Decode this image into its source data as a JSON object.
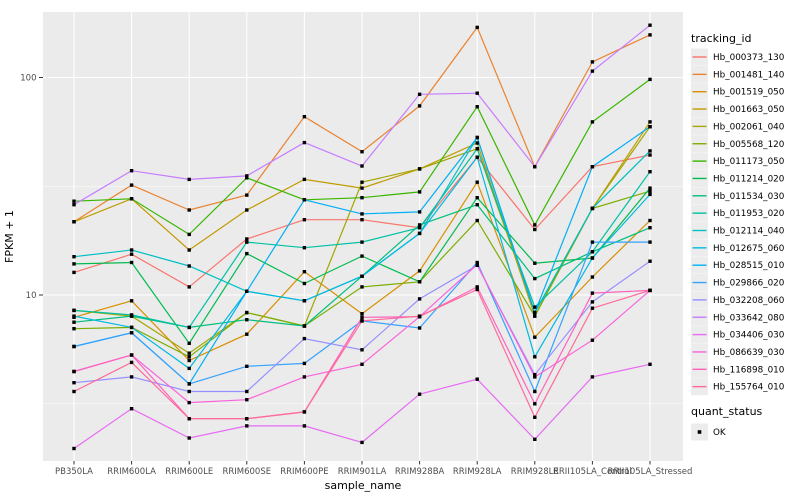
{
  "chart_data": {
    "type": "line",
    "title": "",
    "xlabel": "sample_name",
    "ylabel": "FPKM + 1",
    "y_scale": "log10",
    "ylim": [
      1.7,
      200
    ],
    "y_axis_ticks": [
      100,
      10
    ],
    "y_minor_ticks": [
      31.62,
      3.162
    ],
    "grid": true,
    "panel_bg": "#EBEBEB",
    "grid_color": "#FFFFFF",
    "tick_text_color": "#4d4d4d",
    "marker": "black-square",
    "categories": [
      "PB350LA",
      "RRIM600LA",
      "RRIM600LE",
      "RRIM600SE",
      "RRIM600PE",
      "RRIM901LA",
      "RRIM928BA",
      "RRIM928LA",
      "RRIM928LE",
      "RRII105LA_Control",
      "RRII105LA_Stressed"
    ],
    "legend": {
      "title": "tracking_id",
      "position": "right"
    },
    "legend2": {
      "title": "quant_status",
      "items": [
        {
          "label": "OK",
          "marker": "filled-square",
          "color": "#000000"
        }
      ]
    },
    "series": [
      {
        "name": "Hb_000373_130",
        "color": "#F8766D",
        "values": [
          12.7,
          15.4,
          10.9,
          18.1,
          22.2,
          22.2,
          20.4,
          43,
          20.0,
          38.9,
          44
        ]
      },
      {
        "name": "Hb_001481_140",
        "color": "#EA8331",
        "values": [
          21.7,
          32,
          24.6,
          28.8,
          66,
          45.6,
          74,
          170,
          38.9,
          118,
          157
        ]
      },
      {
        "name": "Hb_001519_050",
        "color": "#D89000",
        "values": [
          7.9,
          9.4,
          5.0,
          6.6,
          12.8,
          8.2,
          12.9,
          33,
          6.4,
          12.1,
          22
        ]
      },
      {
        "name": "Hb_001663_050",
        "color": "#C09B00",
        "values": [
          21.7,
          27.7,
          16.1,
          24.6,
          34,
          31,
          38,
          50,
          8.0,
          25,
          62.5
        ]
      },
      {
        "name": "Hb_002061_040",
        "color": "#A3A500",
        "values": [
          8.5,
          8.0,
          5.4,
          8.3,
          7.2,
          33,
          38,
          47,
          8.3,
          25,
          59.4
        ]
      },
      {
        "name": "Hb_005568_120",
        "color": "#7CAE00",
        "values": [
          7.0,
          7.1,
          5.2,
          8.3,
          7.2,
          10.9,
          11.5,
          22,
          8.0,
          25,
          30
        ]
      },
      {
        "name": "Hb_011173_050",
        "color": "#39B600",
        "values": [
          27,
          27.7,
          19,
          34.6,
          27.4,
          28,
          29.8,
          73.4,
          21,
          62.5,
          98
        ]
      },
      {
        "name": "Hb_011214_020",
        "color": "#00BB4E",
        "values": [
          13.9,
          14.1,
          6.0,
          15.5,
          11.3,
          15.1,
          11.5,
          28,
          14,
          14.8,
          31
        ]
      },
      {
        "name": "Hb_011534_030",
        "color": "#00BF7D",
        "values": [
          7.5,
          8.0,
          7.1,
          7.7,
          7.2,
          12.2,
          21,
          26,
          11.9,
          15.8,
          20.4
        ]
      },
      {
        "name": "Hb_011953_020",
        "color": "#00C1A3",
        "values": [
          8.5,
          8.1,
          7.1,
          17.5,
          16.5,
          17.5,
          20.4,
          47,
          8.8,
          15.8,
          36.9
        ]
      },
      {
        "name": "Hb_012114_040",
        "color": "#00BFC4",
        "values": [
          15.0,
          16.1,
          13.6,
          10.4,
          9.4,
          12.2,
          19.2,
          53,
          8.3,
          25,
          46
        ]
      },
      {
        "name": "Hb_012675_060",
        "color": "#00BAE0",
        "values": [
          8.0,
          7.1,
          4.6,
          10.4,
          9.4,
          12.2,
          19.2,
          43,
          5.2,
          14.8,
          29
        ]
      },
      {
        "name": "Hb_028515_010",
        "color": "#00B0F6",
        "values": [
          5.8,
          6.7,
          3.9,
          10.4,
          27.4,
          23.6,
          24.1,
          53,
          8.3,
          38.9,
          59.4
        ]
      },
      {
        "name": "Hb_029866_020",
        "color": "#35A2FF",
        "values": [
          5.8,
          6.7,
          3.9,
          4.7,
          4.85,
          7.6,
          7.05,
          14.1,
          3.6,
          17.5,
          17.5
        ]
      },
      {
        "name": "Hb_032208_060",
        "color": "#9590FF",
        "values": [
          3.95,
          4.2,
          3.6,
          3.6,
          6.3,
          5.6,
          9.6,
          13.7,
          4.3,
          9.3,
          14.3
        ]
      },
      {
        "name": "Hb_033642_080",
        "color": "#C77CFF",
        "values": [
          26,
          37.3,
          34,
          35.3,
          50.2,
          39.2,
          83.7,
          84.7,
          38.9,
          107,
          174
        ]
      },
      {
        "name": "Hb_034406_030",
        "color": "#E76BF3",
        "values": [
          1.97,
          3.0,
          2.2,
          2.5,
          2.5,
          2.1,
          3.5,
          4.1,
          2.17,
          4.2,
          4.8
        ]
      },
      {
        "name": "Hb_086639_030",
        "color": "#FA62DB",
        "values": [
          4.45,
          5.3,
          3.2,
          3.3,
          4.2,
          4.8,
          7.95,
          13.8,
          4.2,
          6.2,
          10.5
        ]
      },
      {
        "name": "Hb_116898_010",
        "color": "#FF62BC",
        "values": [
          4.45,
          5.3,
          2.7,
          2.7,
          2.9,
          7.9,
          7.95,
          10.9,
          3.16,
          10.2,
          10.5
        ]
      },
      {
        "name": "Hb_155764_010",
        "color": "#FF6A98",
        "values": [
          3.6,
          4.9,
          2.7,
          2.7,
          2.9,
          7.6,
          8.0,
          10.6,
          2.74,
          8.7,
          10.5
        ]
      }
    ]
  }
}
